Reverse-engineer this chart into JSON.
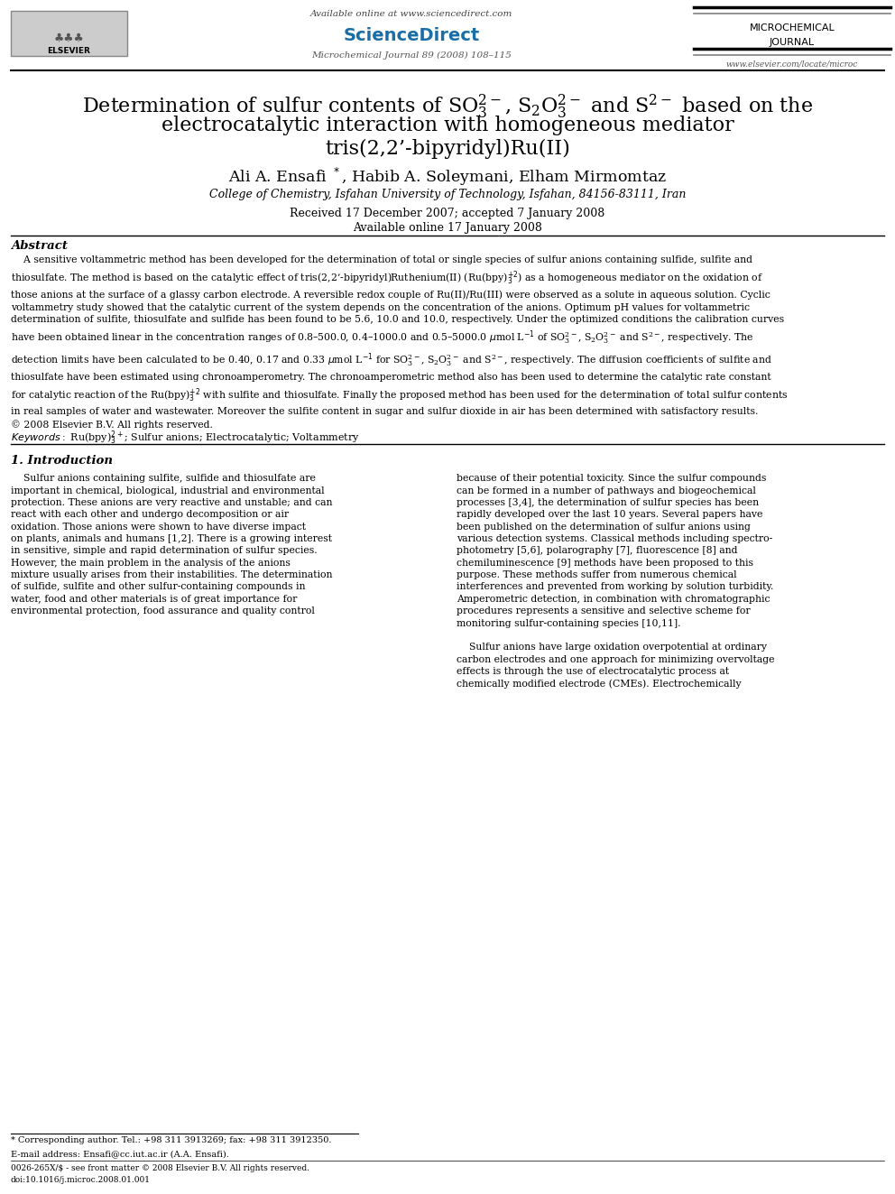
{
  "background_color": "#ffffff",
  "page_width": 9.92,
  "page_height": 13.23,
  "header": {
    "available_online": "Available online at www.sciencedirect.com",
    "journal_name_line1": "MICROCHEMICAL",
    "journal_name_line2": "JOURNAL",
    "journal_info": "Microchemical Journal 89 (2008) 108–115",
    "website": "www.elsevier.com/locate/microc",
    "sciencedirect_text": "ScienceDirect"
  },
  "title_line1": "Determination of sulfur contents of $\\mathregular{SO_3^{2-}}$, $\\mathregular{S_2O_3^{2-}}$ and $\\mathregular{S^{2-}}$ based on the",
  "title_line2": "electrocatalytic interaction with homogeneous mediator",
  "title_line3": "tris(2,2’-bipyridyl)Ru(II)",
  "authors": "Ali A. Ensafi $^*$, Habib A. Soleymani, Elham Mirmomtaz",
  "affiliation": "College of Chemistry, Isfahan University of Technology, Isfahan, 84156-83111, Iran",
  "received": "Received 17 December 2007; accepted 7 January 2008",
  "available_online_date": "Available online 17 January 2008",
  "abstract_title": "Abstract",
  "section1_title": "1. Introduction",
  "footnote_corresponding": "* Corresponding author. Tel.: +98 311 3913269; fax: +98 311 3912350.",
  "footnote_email": "E-mail address: Ensafi@cc.iut.ac.ir (A.A. Ensafi).",
  "footnote_issn": "0026-265X/$ - see front matter © 2008 Elsevier B.V. All rights reserved.",
  "footnote_doi": "doi:10.1016/j.microc.2008.01.001"
}
